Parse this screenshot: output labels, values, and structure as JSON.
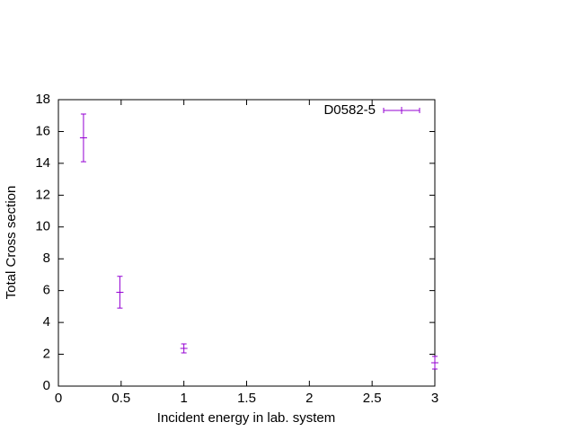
{
  "chart_data": {
    "type": "errorbar",
    "x_label": "Incident energy in lab. system",
    "y_label": "Total Cross section",
    "xlim": [
      0,
      3
    ],
    "xticks": [
      0,
      0.5,
      1,
      1.5,
      2,
      2.5,
      3
    ],
    "ylim": [
      0,
      18
    ],
    "yticks": [
      0,
      2,
      4,
      6,
      8,
      10,
      12,
      14,
      16,
      18
    ],
    "legend": "top-right",
    "series": [
      {
        "name": "D0582-5",
        "color": "#9400d3",
        "x": [
          0.2,
          0.49,
          1.0,
          3.0
        ],
        "values": [
          15.6,
          5.9,
          2.37,
          1.47
        ],
        "errors": [
          1.5,
          1.0,
          0.28,
          0.4
        ]
      }
    ]
  }
}
